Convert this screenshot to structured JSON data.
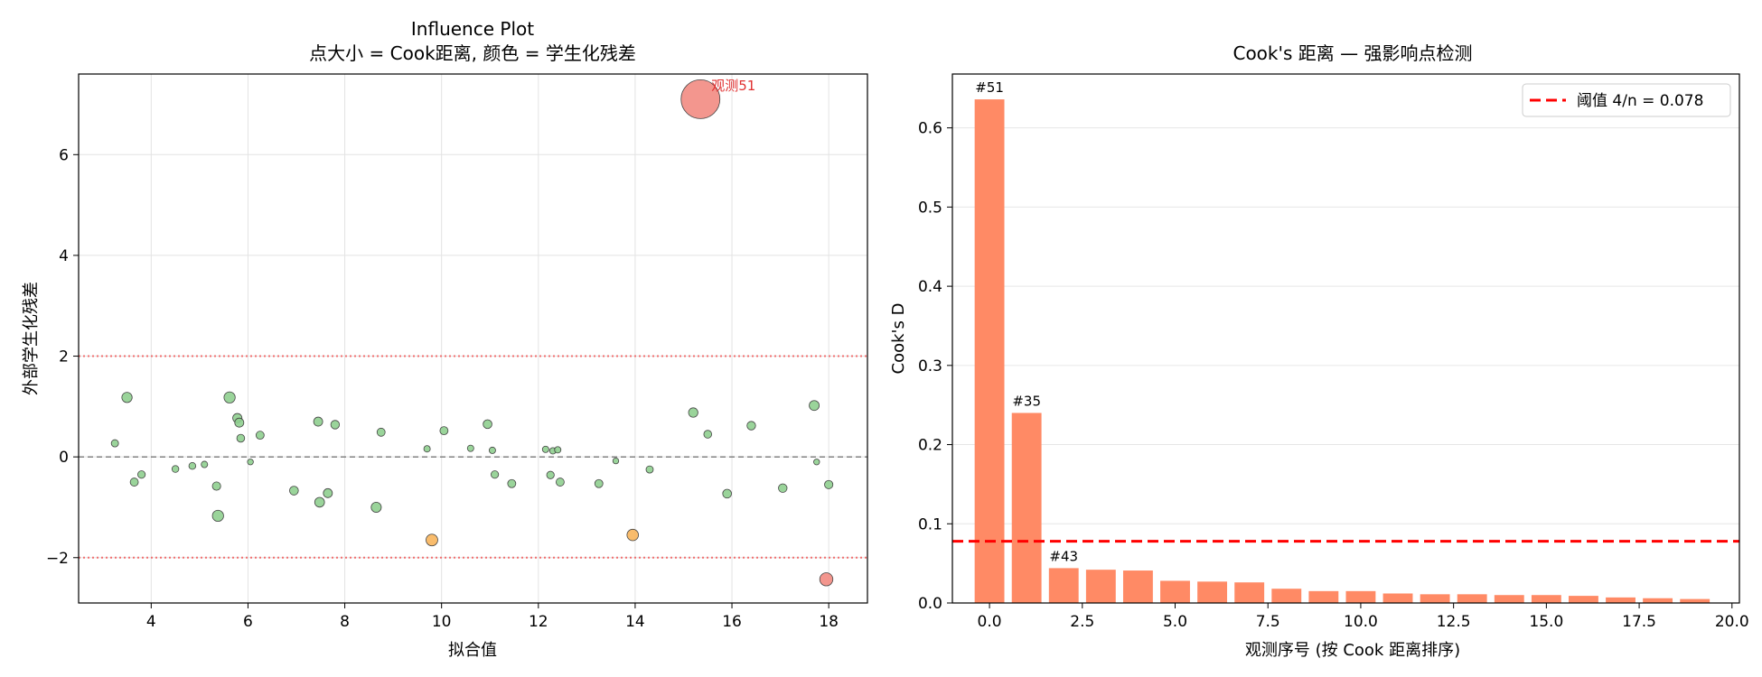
{
  "chart_data": [
    {
      "type": "scatter",
      "title": "Influence Plot",
      "subtitle": "点大小 = Cook距离, 颜色 = 学生化残差",
      "xlabel": "拟合值",
      "ylabel": "外部学生化残差",
      "xlim": [
        2.5,
        18.8
      ],
      "ylim": [
        -2.9,
        7.6
      ],
      "xticks": [
        4,
        6,
        8,
        10,
        12,
        14,
        16,
        18
      ],
      "yticks": [
        -2,
        0,
        2,
        4,
        6
      ],
      "grid": true,
      "reference_lines": {
        "zero": 0,
        "upper": 2,
        "lower": -2
      },
      "annotation": {
        "text": "观测51",
        "x": 15.35,
        "y": 7.1,
        "color": "#e03030"
      },
      "colors": {
        "normal": "#8fcf8f",
        "warning": "#f8b55c",
        "outlier": "#f28b82",
        "annotation": "#e03030",
        "ref_red": "#f07070"
      },
      "points": [
        {
          "x": 3.25,
          "y": 0.27,
          "d": 0.004
        },
        {
          "x": 3.5,
          "y": 1.18,
          "d": 0.018
        },
        {
          "x": 3.65,
          "y": -0.5,
          "d": 0.007
        },
        {
          "x": 3.8,
          "y": -0.35,
          "d": 0.005
        },
        {
          "x": 4.5,
          "y": -0.24,
          "d": 0.003
        },
        {
          "x": 4.85,
          "y": -0.18,
          "d": 0.003
        },
        {
          "x": 5.1,
          "y": -0.15,
          "d": 0.002
        },
        {
          "x": 5.35,
          "y": -0.58,
          "d": 0.008
        },
        {
          "x": 5.38,
          "y": -1.17,
          "d": 0.024
        },
        {
          "x": 5.62,
          "y": 1.18,
          "d": 0.024
        },
        {
          "x": 5.78,
          "y": 0.77,
          "d": 0.012
        },
        {
          "x": 5.82,
          "y": 0.68,
          "d": 0.011
        },
        {
          "x": 5.85,
          "y": 0.37,
          "d": 0.006
        },
        {
          "x": 6.05,
          "y": -0.1,
          "d": 0.001
        },
        {
          "x": 6.25,
          "y": 0.43,
          "d": 0.007
        },
        {
          "x": 6.95,
          "y": -0.67,
          "d": 0.01
        },
        {
          "x": 7.45,
          "y": 0.7,
          "d": 0.011
        },
        {
          "x": 7.48,
          "y": -0.9,
          "d": 0.015
        },
        {
          "x": 7.65,
          "y": -0.72,
          "d": 0.011
        },
        {
          "x": 7.8,
          "y": 0.64,
          "d": 0.009
        },
        {
          "x": 8.65,
          "y": -1.0,
          "d": 0.017
        },
        {
          "x": 8.75,
          "y": 0.49,
          "d": 0.007
        },
        {
          "x": 9.7,
          "y": 0.16,
          "d": 0.002
        },
        {
          "x": 9.8,
          "y": -1.65,
          "d": 0.028
        },
        {
          "x": 10.05,
          "y": 0.52,
          "d": 0.007
        },
        {
          "x": 10.6,
          "y": 0.17,
          "d": 0.002
        },
        {
          "x": 10.95,
          "y": 0.65,
          "d": 0.01
        },
        {
          "x": 11.05,
          "y": 0.13,
          "d": 0.002
        },
        {
          "x": 11.1,
          "y": -0.35,
          "d": 0.005
        },
        {
          "x": 11.45,
          "y": -0.53,
          "d": 0.007
        },
        {
          "x": 12.15,
          "y": 0.15,
          "d": 0.002
        },
        {
          "x": 12.25,
          "y": -0.36,
          "d": 0.005
        },
        {
          "x": 12.3,
          "y": 0.12,
          "d": 0.002
        },
        {
          "x": 12.4,
          "y": 0.14,
          "d": 0.002
        },
        {
          "x": 12.45,
          "y": -0.5,
          "d": 0.007
        },
        {
          "x": 13.25,
          "y": -0.53,
          "d": 0.007
        },
        {
          "x": 13.6,
          "y": -0.08,
          "d": 0.001
        },
        {
          "x": 13.95,
          "y": -1.55,
          "d": 0.026
        },
        {
          "x": 14.3,
          "y": -0.25,
          "d": 0.004
        },
        {
          "x": 15.2,
          "y": 0.88,
          "d": 0.013
        },
        {
          "x": 15.35,
          "y": 7.1,
          "d": 0.636
        },
        {
          "x": 15.5,
          "y": 0.45,
          "d": 0.006
        },
        {
          "x": 15.9,
          "y": -0.73,
          "d": 0.01
        },
        {
          "x": 16.4,
          "y": 0.62,
          "d": 0.009
        },
        {
          "x": 17.05,
          "y": -0.62,
          "d": 0.009
        },
        {
          "x": 17.7,
          "y": 1.02,
          "d": 0.016
        },
        {
          "x": 17.75,
          "y": -0.1,
          "d": 0.001
        },
        {
          "x": 17.95,
          "y": -2.43,
          "d": 0.04
        },
        {
          "x": 18.0,
          "y": -0.55,
          "d": 0.008
        }
      ]
    },
    {
      "type": "bar",
      "title": "Cook's 距离 — 强影响点检测",
      "xlabel": "观测序号 (按 Cook 距离排序)",
      "ylabel": "Cook's D",
      "xlim": [
        -1.0,
        20.2
      ],
      "ylim": [
        0,
        0.668
      ],
      "xticks": [
        0.0,
        2.5,
        5.0,
        7.5,
        10.0,
        12.5,
        15.0,
        17.5,
        20.0
      ],
      "xtick_labels": [
        "0.0",
        "2.5",
        "5.0",
        "7.5",
        "10.0",
        "12.5",
        "15.0",
        "17.5",
        "20.0"
      ],
      "yticks": [
        0.0,
        0.1,
        0.2,
        0.3,
        0.4,
        0.5,
        0.6
      ],
      "ytick_labels": [
        "0.0",
        "0.1",
        "0.2",
        "0.3",
        "0.4",
        "0.5",
        "0.6"
      ],
      "grid": "y",
      "bar_color": "#ff8a65",
      "threshold": {
        "value": 0.078,
        "label": "阈值 4/n = 0.078",
        "color": "#ff0000"
      },
      "legend": {
        "position": "top-right",
        "entries": [
          "阈值 4/n = 0.078"
        ]
      },
      "x": [
        0,
        1,
        2,
        3,
        4,
        5,
        6,
        7,
        8,
        9,
        10,
        11,
        12,
        13,
        14,
        15,
        16,
        17,
        18,
        19
      ],
      "values": [
        0.636,
        0.24,
        0.044,
        0.042,
        0.041,
        0.028,
        0.027,
        0.026,
        0.018,
        0.015,
        0.015,
        0.012,
        0.011,
        0.011,
        0.01,
        0.01,
        0.009,
        0.007,
        0.006,
        0.005
      ],
      "bar_labels": [
        {
          "index": 0,
          "text": "#51"
        },
        {
          "index": 1,
          "text": "#35"
        },
        {
          "index": 2,
          "text": "#43"
        }
      ]
    }
  ]
}
